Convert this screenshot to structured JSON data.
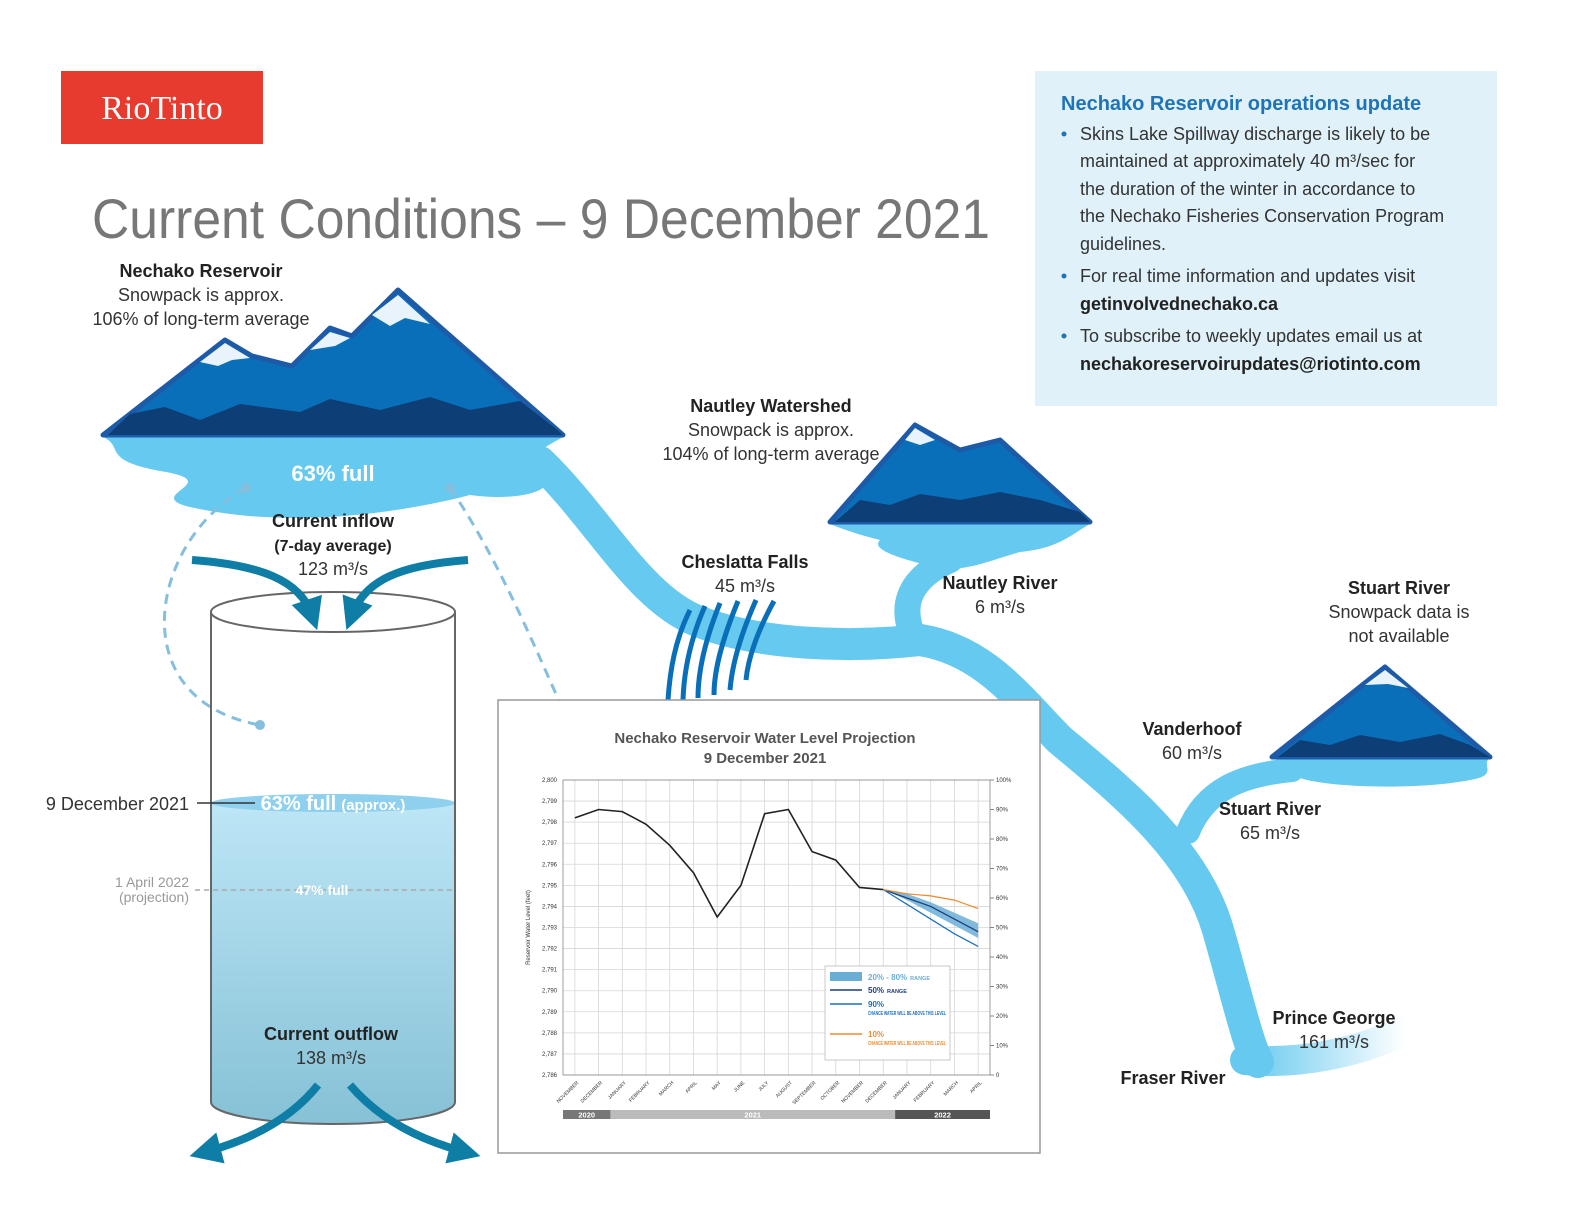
{
  "logo": "RioTinto",
  "title": "Current Conditions – 9 December 2021",
  "update_box": {
    "heading": "Nechako Reservoir operations update",
    "bullets": [
      {
        "lines": [
          "Skins Lake Spillway discharge is likely to be",
          "maintained at approximately 40 m³/sec for",
          "the duration of the winter in accordance to",
          "the Nechako Fisheries Conservation Program",
          "guidelines."
        ]
      },
      {
        "lines": [
          "For real time information and updates visit"
        ],
        "link": "getinvolvednechako.ca"
      },
      {
        "lines": [
          "To subscribe to weekly updates email us at"
        ],
        "link": "nechakoreservoirupdates@riotinto.com"
      }
    ]
  },
  "reservoir": {
    "name": "Nechako Reservoir",
    "snowpack": [
      "Snowpack is approx.",
      "106% of long-term average"
    ],
    "level": "63% full",
    "inflow": {
      "label": "Current inflow",
      "note": "(7-day average)",
      "value": "123 m³/s"
    }
  },
  "cylinder": {
    "current": {
      "date": "9 December 2021",
      "level": "63% full",
      "qualifier": "(approx.)"
    },
    "projection": {
      "date": "1 April 2022",
      "note": "(projection)",
      "level": "47% full"
    },
    "outflow": {
      "label": "Current outflow",
      "value": "138 m³/s"
    }
  },
  "places": [
    {
      "name": "Nautley Watershed",
      "lines": [
        "Snowpack is approx.",
        "104% of long-term average"
      ]
    },
    {
      "name": "Cheslatta Falls",
      "lines": [
        "45 m³/s"
      ]
    },
    {
      "name": "Nautley River",
      "lines": [
        "6 m³/s"
      ]
    },
    {
      "name": "Stuart River",
      "lines": [
        "Snowpack data is",
        "not available"
      ]
    },
    {
      "name": "Vanderhoof",
      "lines": [
        "60 m³/s"
      ]
    },
    {
      "name": "Stuart River",
      "lines": [
        "65 m³/s"
      ]
    },
    {
      "name": "Prince George",
      "lines": [
        "161 m³/s"
      ]
    },
    {
      "name": "Fraser River",
      "lines": []
    }
  ],
  "chart_data": {
    "type": "line",
    "title": "Nechako Reservoir Water Level Projection",
    "subtitle": "9 December 2021",
    "y_label": "Reservoir Water Level (feet)",
    "categories": [
      "NOVEMBER",
      "DECEMBER",
      "JANUARY",
      "FEBRUARY",
      "MARCH",
      "APRIL",
      "MAY",
      "JUNE",
      "JULY",
      "AUGUST",
      "SEPTEMBER",
      "OCTOBER",
      "NOVEMBER",
      "DECEMBER",
      "JANUARY",
      "FEBRUARY",
      "MARCH",
      "APRIL"
    ],
    "years": [
      "2020",
      "2021",
      "2022"
    ],
    "ylim": [
      2786,
      2800
    ],
    "yticks": [
      {
        "value": 2786,
        "label": "2,786"
      },
      {
        "value": 2787,
        "label": "2,787"
      },
      {
        "value": 2788,
        "label": "2,788"
      },
      {
        "value": 2789,
        "label": "2,789"
      },
      {
        "value": 2790,
        "label": "2,790"
      },
      {
        "value": 2791,
        "label": "2,791"
      },
      {
        "value": 2792,
        "label": "2,792"
      },
      {
        "value": 2793,
        "label": "2,793"
      },
      {
        "value": 2794,
        "label": "2,794"
      },
      {
        "value": 2795,
        "label": "2,795"
      },
      {
        "value": 2796,
        "label": "2,796"
      },
      {
        "value": 2797,
        "label": "2,797"
      },
      {
        "value": 2798,
        "label": "2,798"
      },
      {
        "value": 2799,
        "label": "2,799"
      },
      {
        "value": 2800,
        "label": "2,800"
      }
    ],
    "y2lim": [
      0,
      100
    ],
    "y2ticks": [
      0,
      {
        "value": 10,
        "label": "10%"
      },
      {
        "value": 20,
        "label": "20%"
      },
      {
        "value": 30,
        "label": "30%"
      },
      {
        "value": 40,
        "label": "40%"
      },
      {
        "value": 50,
        "label": "50%"
      },
      {
        "value": 60,
        "label": "60%"
      },
      {
        "value": 70,
        "label": "70%"
      },
      {
        "value": 80,
        "label": "80%"
      },
      {
        "value": 90,
        "label": "90%"
      },
      {
        "value": 100,
        "label": "100%"
      }
    ],
    "grid": true,
    "band": {
      "name": "20% - 80%",
      "note": "RANGE",
      "color": "#6aaed6",
      "low": [
        null,
        null,
        null,
        null,
        null,
        null,
        null,
        null,
        null,
        null,
        null,
        null,
        null,
        2794.8,
        2794.3,
        2793.7,
        2793.1,
        2792.5
      ],
      "high": [
        null,
        null,
        null,
        null,
        null,
        null,
        null,
        null,
        null,
        null,
        null,
        null,
        null,
        2794.8,
        2794.6,
        2794.2,
        2793.7,
        2793.2
      ]
    },
    "series": [
      {
        "color": "#222222",
        "values": [
          2798.2,
          2798.6,
          2798.5,
          2797.9,
          2796.9,
          2795.6,
          2793.5,
          2795.0,
          2798.4,
          2798.6,
          2796.6,
          2796.2,
          2794.9,
          2794.8,
          null,
          null,
          null,
          null
        ]
      },
      {
        "name": "50%",
        "note": "RANGE",
        "color": "#1c3f7a",
        "values": [
          null,
          null,
          null,
          null,
          null,
          null,
          null,
          null,
          null,
          null,
          null,
          null,
          null,
          2794.8,
          2794.4,
          2794.0,
          2793.4,
          2792.8
        ]
      },
      {
        "name": "90%",
        "note": "CHANCE WATER WILL BE ABOVE THIS LEVEL",
        "color": "#1a6fc0",
        "values": [
          null,
          null,
          null,
          null,
          null,
          null,
          null,
          null,
          null,
          null,
          null,
          null,
          null,
          2794.8,
          2794.1,
          2793.4,
          2792.7,
          2792.1
        ]
      },
      {
        "name": "10%",
        "note": "CHANCE WATER WILL BE ABOVE THIS LEVEL",
        "color": "#f08a2c",
        "values": [
          null,
          null,
          null,
          null,
          null,
          null,
          null,
          null,
          null,
          null,
          null,
          null,
          null,
          2794.8,
          2794.6,
          2794.5,
          2794.3,
          2793.9
        ]
      }
    ]
  }
}
